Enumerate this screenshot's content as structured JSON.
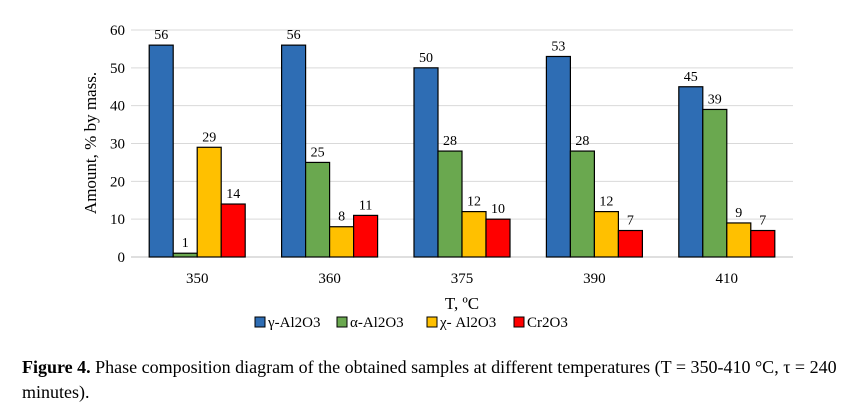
{
  "chart_data": {
    "type": "bar",
    "categories": [
      "350",
      "360",
      "375",
      "390",
      "410"
    ],
    "series": [
      {
        "name": "γ-Al2O3",
        "color": "#2E6DB4",
        "values": [
          56,
          56,
          50,
          53,
          45
        ]
      },
      {
        "name": "α-Al2O3",
        "color": "#6AA84F",
        "values": [
          1,
          25,
          28,
          28,
          39
        ]
      },
      {
        "name": "χ- Al2O3",
        "color": "#FFC000",
        "values": [
          29,
          8,
          12,
          12,
          9
        ]
      },
      {
        "name": "Cr2O3",
        "color": "#FF0000",
        "values": [
          14,
          11,
          10,
          7,
          7
        ]
      }
    ],
    "xlabel": "T, ºC",
    "ylabel": "Amount, % by mass.",
    "ylim": [
      0,
      60
    ],
    "yticks": [
      0,
      10,
      20,
      30,
      40,
      50,
      60
    ],
    "grid": true,
    "legend": "bottom",
    "data_labels": true
  },
  "caption": {
    "label": "Figure 4.",
    "text": " Phase composition diagram of the obtained samples at different temperatures (T = 350-410 °C, τ = 240 minutes)."
  }
}
